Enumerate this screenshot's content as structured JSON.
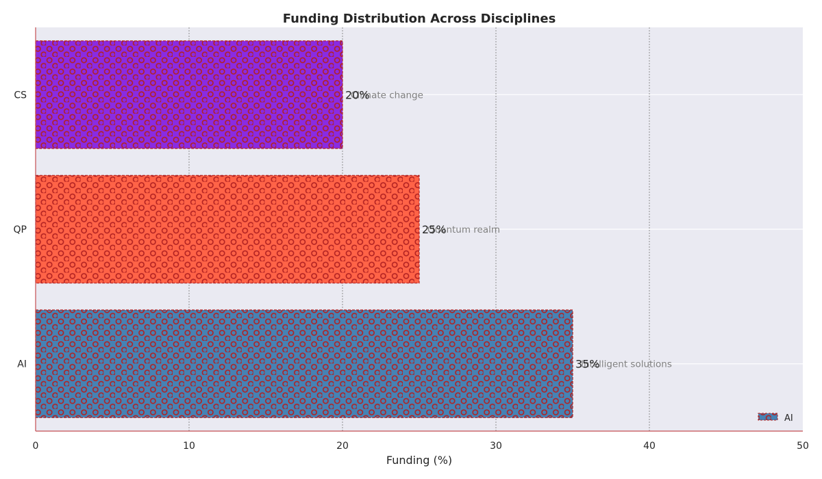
{
  "chart_data": {
    "type": "bar",
    "orientation": "horizontal",
    "title": "Funding Distribution Across Disciplines",
    "xlabel": "Funding (%)",
    "ylabel": "",
    "xlim": [
      0,
      50
    ],
    "xticks": [
      0,
      10,
      20,
      30,
      40,
      50
    ],
    "categories": [
      "AI",
      "QP",
      "CS"
    ],
    "values": [
      35,
      25,
      20
    ],
    "value_labels": [
      "35%",
      "25%",
      "20%"
    ],
    "annotations": [
      "Intelligent solutions",
      "Quantum realm",
      "Climate change"
    ],
    "colors": [
      "#4682b4",
      "#ff6347",
      "#8a2be2"
    ],
    "pattern_color": "#b22222",
    "grid": "vertical dashed",
    "legend": {
      "entries": [
        "AI"
      ],
      "placement": "bottom-right"
    }
  }
}
